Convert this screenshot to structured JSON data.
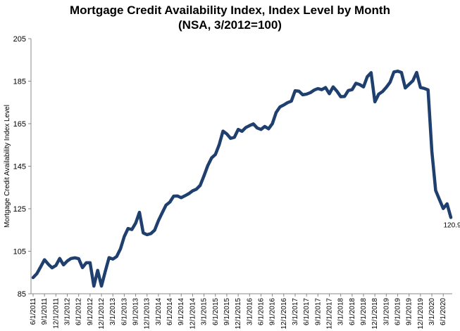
{
  "chart_data": {
    "type": "line",
    "title": "Mortgage Credit Availability Index, Index Level by Month",
    "subtitle": "(NSA, 3/2012=100)",
    "xlabel": "",
    "ylabel": "Mortgage Credit Availability Index Level",
    "ylim": [
      85,
      205
    ],
    "yticks": [
      85,
      105,
      125,
      145,
      165,
      185,
      205
    ],
    "grid": false,
    "legend": "none",
    "line_color": "#1f3f6e",
    "xtick_labels": [
      "6/1/2011",
      "9/1/2011",
      "12/1/2011",
      "3/1/2012",
      "6/1/2012",
      "9/1/2012",
      "12/1/2012",
      "3/1/2013",
      "6/1/2013",
      "9/1/2013",
      "12/1/2013",
      "3/1/2014",
      "6/1/2014",
      "9/1/2014",
      "12/1/2014",
      "3/1/2015",
      "6/1/2015",
      "9/1/2015",
      "12/1/2015",
      "3/1/2016",
      "6/1/2016",
      "9/1/2016",
      "12/1/2016",
      "3/1/2017",
      "6/1/2017",
      "9/1/2017",
      "12/1/2017",
      "3/1/2018",
      "6/1/2018",
      "9/1/2018",
      "12/1/2018",
      "3/1/2019",
      "6/1/2019",
      "9/1/2019",
      "12/1/2019",
      "3/1/2020",
      "6/1/2020"
    ],
    "series": [
      {
        "values": [
          92.6,
          94.5,
          97.7,
          101.0,
          98.9,
          97.2,
          98.3,
          101.6,
          98.6,
          100.4,
          101.6,
          101.9,
          101.5,
          97.3,
          99.6,
          99.6,
          88.6,
          96.0,
          88.6,
          95.5,
          102.0,
          101.3,
          102.5,
          106.1,
          111.9,
          115.7,
          115.2,
          118.2,
          123.3,
          113.6,
          112.8,
          113.3,
          114.9,
          119.4,
          123.1,
          126.7,
          128.1,
          130.9,
          131.0,
          130.2,
          131.1,
          132.1,
          133.4,
          134.2,
          136.0,
          140.5,
          145.3,
          148.9,
          150.5,
          155.1,
          161.5,
          160.2,
          158.1,
          158.6,
          162.3,
          161.4,
          163.2,
          164.1,
          164.9,
          163.0,
          162.3,
          163.7,
          162.6,
          165.0,
          170.3,
          172.9,
          173.8,
          174.9,
          175.6,
          180.5,
          180.3,
          178.6,
          178.9,
          179.6,
          180.8,
          181.5,
          181.0,
          182.0,
          179.1,
          182.3,
          180.3,
          177.7,
          177.8,
          180.6,
          181.0,
          184.0,
          183.4,
          182.3,
          187.1,
          189.0,
          175.3,
          178.9,
          180.1,
          182.1,
          184.5,
          189.3,
          189.7,
          189.1,
          181.8,
          183.5,
          185.2,
          189.1,
          182.0,
          181.6,
          180.9,
          152.0,
          133.6,
          129.3,
          125.1,
          127.3,
          120.9
        ]
      }
    ],
    "annotations": [
      {
        "label": "120.9",
        "series": 0,
        "index": 110
      }
    ]
  }
}
